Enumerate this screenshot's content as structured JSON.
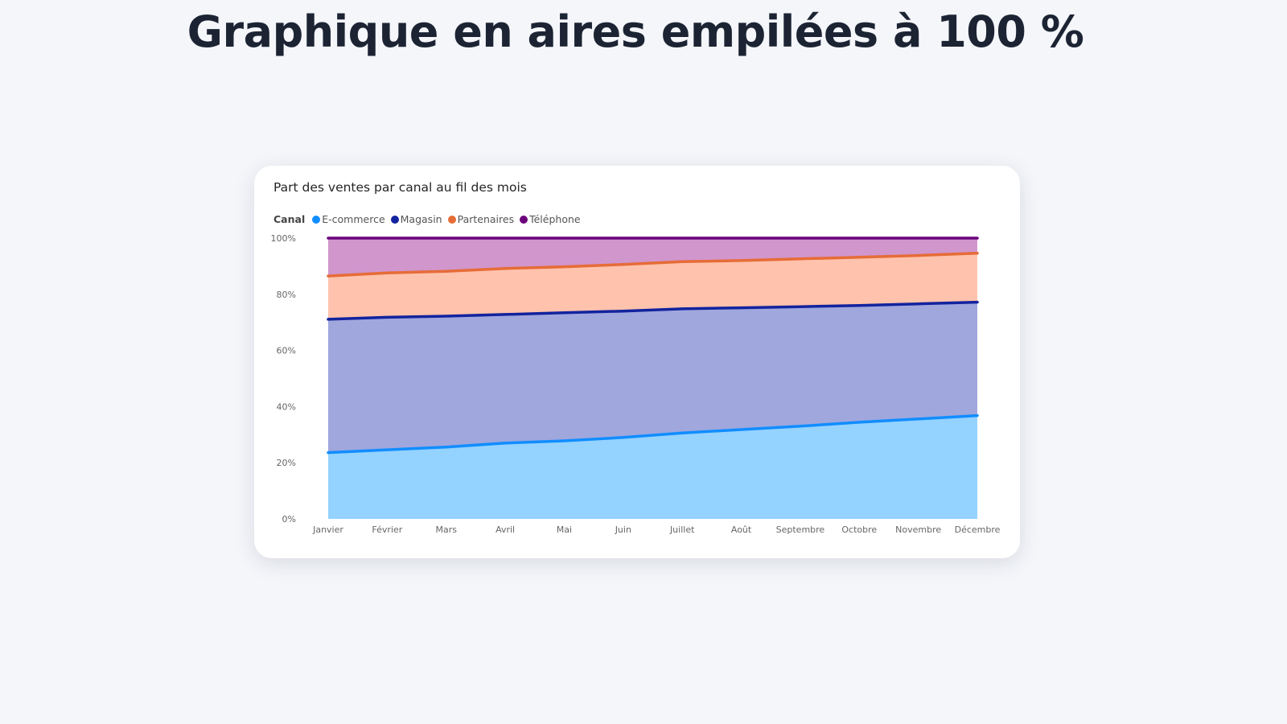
{
  "page": {
    "title": "Graphique en aires empilées à 100 %"
  },
  "chart_data": {
    "type": "area",
    "stacked": "percent",
    "title": "Part des ventes par canal au fil des mois",
    "legend_title": "Canal",
    "legend_position": "top-left",
    "categories": [
      "Janvier",
      "Février",
      "Mars",
      "Avril",
      "Mai",
      "Juin",
      "Juillet",
      "Août",
      "Septembre",
      "Octobre",
      "Novembre",
      "Décembre"
    ],
    "ylim": [
      0,
      100
    ],
    "yticks": [
      "0%",
      "20%",
      "40%",
      "60%",
      "80%",
      "100%"
    ],
    "grid": false,
    "series": [
      {
        "name": "E-commerce",
        "line_color": "#118dff",
        "fill_color": "#94d2ff",
        "values": [
          23.6,
          24.6,
          25.6,
          27.0,
          27.8,
          29.0,
          30.6,
          31.8,
          33.0,
          34.4,
          35.6,
          36.8
        ]
      },
      {
        "name": "Magasin",
        "line_color": "#12239e",
        "fill_color": "#a0a7dd",
        "values": [
          47.5,
          47.2,
          46.6,
          45.8,
          45.6,
          45.0,
          44.2,
          43.4,
          42.6,
          41.6,
          41.0,
          40.4
        ]
      },
      {
        "name": "Partenaires",
        "line_color": "#e66c37",
        "fill_color": "#ffc2ad",
        "values": [
          15.4,
          15.8,
          16.0,
          16.4,
          16.4,
          16.6,
          16.8,
          16.8,
          17.0,
          17.2,
          17.2,
          17.4
        ]
      },
      {
        "name": "Téléphone",
        "line_color": "#6b007b",
        "fill_color": "#d196cc",
        "values": [
          13.5,
          12.4,
          11.8,
          10.8,
          10.2,
          9.4,
          8.4,
          8.0,
          7.4,
          6.8,
          6.2,
          5.4
        ]
      }
    ]
  }
}
